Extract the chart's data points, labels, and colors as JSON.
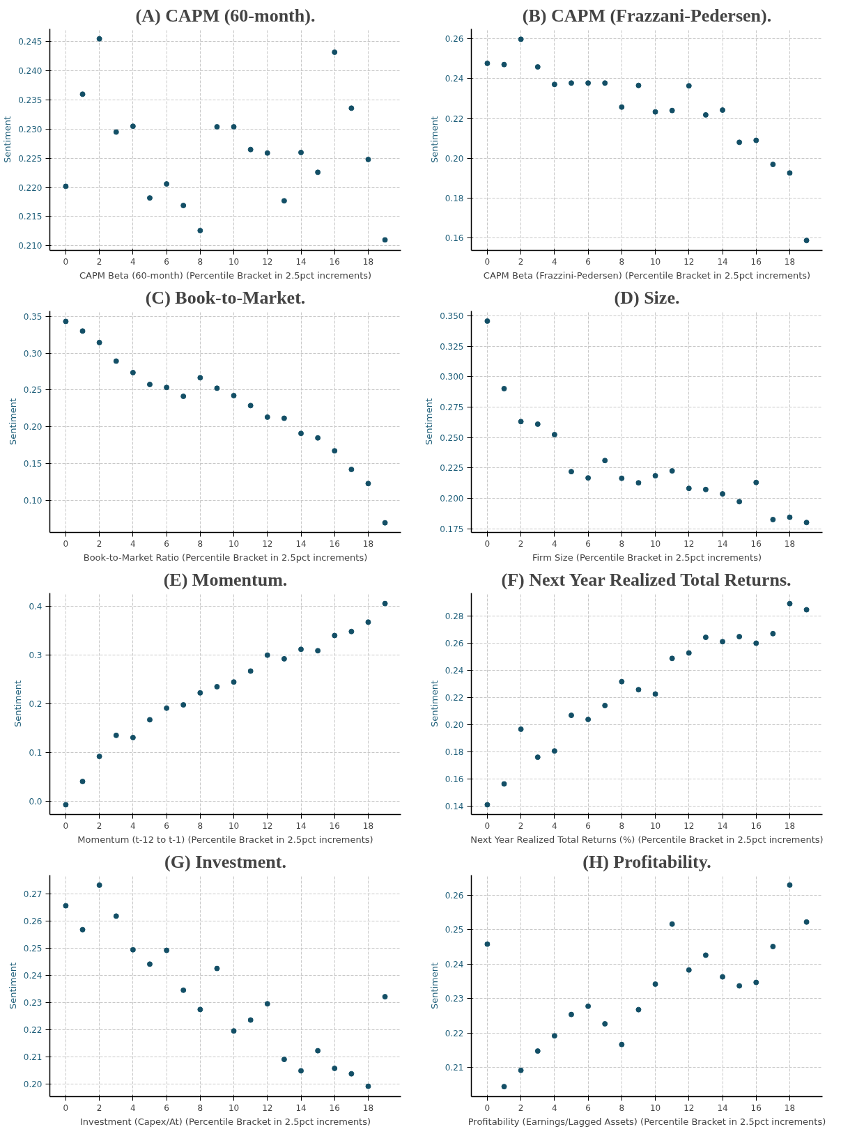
{
  "chart_data": [
    {
      "type": "scatter",
      "title": "(A) CAPM (60-month).",
      "xlabel": "CAPM Beta (60-month) (Percentile Bracket in 2.5pct increments)",
      "ylabel": "Sentiment",
      "color": "#134f66",
      "marker": "circle",
      "grid": true,
      "x": [
        0,
        1,
        2,
        3,
        4,
        5,
        6,
        7,
        8,
        9,
        10,
        11,
        12,
        13,
        14,
        15,
        16,
        17,
        18,
        19
      ],
      "values": [
        0.2202,
        0.236,
        0.2455,
        0.2295,
        0.2305,
        0.2182,
        0.2206,
        0.2169,
        0.2126,
        0.2304,
        0.2304,
        0.2265,
        0.2259,
        0.2177,
        0.226,
        0.2226,
        0.2432,
        0.2336,
        0.2248,
        0.211
      ],
      "xlim": [
        -0.95,
        19.95
      ],
      "xticks": [
        0,
        2,
        4,
        6,
        8,
        10,
        12,
        14,
        16,
        18
      ],
      "ylim": [
        0.2092,
        0.2472
      ],
      "yticks": [
        {
          "value": 0.21,
          "label": "0.210"
        },
        0.215,
        {
          "value": 0.22,
          "label": "0.220"
        },
        0.225,
        {
          "value": 0.23,
          "label": "0.230"
        },
        0.235,
        {
          "value": 0.24,
          "label": "0.240"
        },
        0.245
      ]
    },
    {
      "type": "scatter",
      "title": "(B) CAPM (Frazzani-Pedersen).",
      "xlabel": "CAPM Beta (Frazzini-Pedersen) (Percentile Bracket in 2.5pct increments)",
      "ylabel": "Sentiment",
      "color": "#134f66",
      "marker": "circle",
      "grid": true,
      "x": [
        0,
        1,
        2,
        3,
        4,
        5,
        6,
        7,
        8,
        9,
        10,
        11,
        12,
        13,
        14,
        15,
        16,
        17,
        18,
        19
      ],
      "values": [
        0.2477,
        0.2471,
        0.2598,
        0.2459,
        0.2371,
        0.2378,
        0.2378,
        0.2378,
        0.2257,
        0.2366,
        0.2233,
        0.224,
        0.2364,
        0.2218,
        0.2242,
        0.208,
        0.209,
        0.1969,
        0.1926,
        0.1587
      ],
      "xlim": [
        -0.95,
        19.95
      ],
      "xticks": [
        0,
        2,
        4,
        6,
        8,
        10,
        12,
        14,
        16,
        18
      ],
      "ylim": [
        0.1537,
        0.265
      ],
      "yticks": [
        0.16,
        0.18,
        {
          "value": 0.2,
          "label": "0.20"
        },
        0.22,
        0.24,
        0.26
      ]
    },
    {
      "type": "scatter",
      "title": "(C) Book-to-Market.",
      "xlabel": "Book-to-Market Ratio (Percentile Bracket in 2.5pct increments)",
      "ylabel": "Sentiment",
      "color": "#134f66",
      "marker": "circle",
      "grid": true,
      "x": [
        0,
        1,
        2,
        3,
        4,
        5,
        6,
        7,
        8,
        9,
        10,
        11,
        12,
        13,
        14,
        15,
        16,
        17,
        18,
        19
      ],
      "values": [
        0.3434,
        0.3303,
        0.3146,
        0.2894,
        0.2737,
        0.2576,
        0.2535,
        0.2414,
        0.2667,
        0.2525,
        0.2424,
        0.2288,
        0.2131,
        0.2116,
        0.1909,
        0.1848,
        0.1672,
        0.1419,
        0.1227,
        0.0692
      ],
      "xlim": [
        -0.95,
        19.95
      ],
      "xticks": [
        0,
        2,
        4,
        6,
        8,
        10,
        12,
        14,
        16,
        18
      ],
      "ylim": [
        0.0561,
        0.3576
      ],
      "yticks": [
        {
          "value": 0.1,
          "label": "0.10"
        },
        0.15,
        {
          "value": 0.2,
          "label": "0.20"
        },
        0.25,
        {
          "value": 0.3,
          "label": "0.30"
        },
        0.35
      ]
    },
    {
      "type": "scatter",
      "title": "(D) Size.",
      "xlabel": "Firm Size (Percentile Bracket in 2.5pct increments)",
      "ylabel": "Sentiment",
      "color": "#134f66",
      "marker": "circle",
      "grid": true,
      "x": [
        0,
        1,
        2,
        3,
        4,
        5,
        6,
        7,
        8,
        9,
        10,
        11,
        12,
        13,
        14,
        15,
        16,
        17,
        18,
        19
      ],
      "values": [
        0.3457,
        0.2902,
        0.2631,
        0.261,
        0.2524,
        0.222,
        0.2168,
        0.2311,
        0.2165,
        0.2128,
        0.2186,
        0.2226,
        0.2082,
        0.2073,
        0.2037,
        0.1973,
        0.2131,
        0.1826,
        0.1845,
        0.1802
      ],
      "xlim": [
        -0.95,
        19.95
      ],
      "xticks": [
        0,
        2,
        4,
        6,
        8,
        10,
        12,
        14,
        16,
        18
      ],
      "ylim": [
        0.172,
        0.354
      ],
      "yticks": [
        0.175,
        {
          "value": 0.2,
          "label": "0.200"
        },
        0.225,
        {
          "value": 0.25,
          "label": "0.250"
        },
        0.275,
        {
          "value": 0.3,
          "label": "0.300"
        },
        0.325,
        {
          "value": 0.35,
          "label": "0.350"
        }
      ]
    },
    {
      "type": "scatter",
      "title": "(E) Momentum.",
      "xlabel": "Momentum (t-12 to t-1) (Percentile Bracket in 2.5pct increments)",
      "ylabel": "Sentiment",
      "color": "#134f66",
      "marker": "circle",
      "grid": true,
      "x": [
        0,
        1,
        2,
        3,
        4,
        5,
        6,
        7,
        8,
        9,
        10,
        11,
        12,
        13,
        14,
        15,
        16,
        17,
        18,
        19
      ],
      "values": [
        -0.0075,
        0.0403,
        0.0918,
        0.1351,
        0.1306,
        0.1672,
        0.191,
        0.1978,
        0.2224,
        0.2351,
        0.2448,
        0.2672,
        0.3,
        0.2925,
        0.3119,
        0.309,
        0.3403,
        0.3485,
        0.3679,
        0.406
      ],
      "xlim": [
        -0.95,
        19.95
      ],
      "xticks": [
        0,
        2,
        4,
        6,
        8,
        10,
        12,
        14,
        16,
        18
      ],
      "ylim": [
        -0.0276,
        0.4276
      ],
      "yticks": [
        {
          "value": 0,
          "label": "0.0"
        },
        0.1,
        0.2,
        0.3,
        0.4
      ]
    },
    {
      "type": "scatter",
      "title": "(F) Next Year Realized Total Returns.",
      "xlabel": "Next Year Realized Total Returns (%) (Percentile Bracket in 2.5pct increments)",
      "ylabel": "Sentiment",
      "color": "#134f66",
      "marker": "circle",
      "grid": true,
      "x": [
        0,
        1,
        2,
        3,
        4,
        5,
        6,
        7,
        8,
        9,
        10,
        11,
        12,
        13,
        14,
        15,
        16,
        17,
        18,
        19
      ],
      "values": [
        0.1413,
        0.1566,
        0.1969,
        0.1763,
        0.1809,
        0.2071,
        0.2041,
        0.2143,
        0.2319,
        0.226,
        0.2228,
        0.249,
        0.253,
        0.2645,
        0.2613,
        0.265,
        0.2602,
        0.2672,
        0.2893,
        0.2848
      ],
      "xlim": [
        -0.95,
        19.95
      ],
      "xticks": [
        0,
        2,
        4,
        6,
        8,
        10,
        12,
        14,
        16,
        18
      ],
      "ylim": [
        0.1341,
        0.2971
      ],
      "yticks": [
        0.14,
        0.16,
        0.18,
        {
          "value": 0.2,
          "label": "0.20"
        },
        0.22,
        0.24,
        0.26,
        0.28
      ]
    },
    {
      "type": "scatter",
      "title": "(G) Investment.",
      "xlabel": "Investment (Capex/At) (Percentile Bracket in 2.5pct increments)",
      "ylabel": "Sentiment",
      "color": "#134f66",
      "marker": "circle",
      "grid": true,
      "x": [
        0,
        1,
        2,
        3,
        4,
        5,
        6,
        7,
        8,
        9,
        10,
        11,
        12,
        13,
        14,
        15,
        16,
        17,
        18,
        19
      ],
      "values": [
        0.2656,
        0.2568,
        0.2732,
        0.2618,
        0.2494,
        0.2441,
        0.2492,
        0.2345,
        0.2274,
        0.2425,
        0.2195,
        0.2235,
        0.2295,
        0.209,
        0.2048,
        0.2122,
        0.2057,
        0.2037,
        0.1991,
        0.2321
      ],
      "xlim": [
        -0.95,
        19.95
      ],
      "xticks": [
        0,
        2,
        4,
        6,
        8,
        10,
        12,
        14,
        16,
        18
      ],
      "ylim": [
        0.1953,
        0.2769
      ],
      "yticks": [
        {
          "value": 0.2,
          "label": "0.20"
        },
        0.21,
        0.22,
        0.23,
        0.24,
        0.25,
        0.26,
        0.27
      ]
    },
    {
      "type": "scatter",
      "title": "(H) Profitability.",
      "xlabel": "Profitability (Earnings/Lagged Assets) (Percentile Bracket in 2.5pct increments)",
      "ylabel": "Sentiment",
      "color": "#134f66",
      "marker": "circle",
      "grid": true,
      "x": [
        0,
        1,
        2,
        3,
        4,
        5,
        6,
        7,
        8,
        9,
        10,
        11,
        12,
        13,
        14,
        15,
        16,
        17,
        18,
        19
      ],
      "values": [
        0.2458,
        0.2045,
        0.2092,
        0.2148,
        0.2192,
        0.2254,
        0.2278,
        0.2227,
        0.2167,
        0.2268,
        0.2342,
        0.2516,
        0.2383,
        0.2426,
        0.2363,
        0.2337,
        0.2347,
        0.2451,
        0.2629,
        0.2522
      ],
      "xlim": [
        -0.95,
        19.95
      ],
      "xticks": [
        0,
        2,
        4,
        6,
        8,
        10,
        12,
        14,
        16,
        18
      ],
      "ylim": [
        0.2016,
        0.2658
      ],
      "yticks": [
        0.21,
        0.22,
        0.23,
        0.24,
        0.25,
        0.26
      ]
    }
  ]
}
